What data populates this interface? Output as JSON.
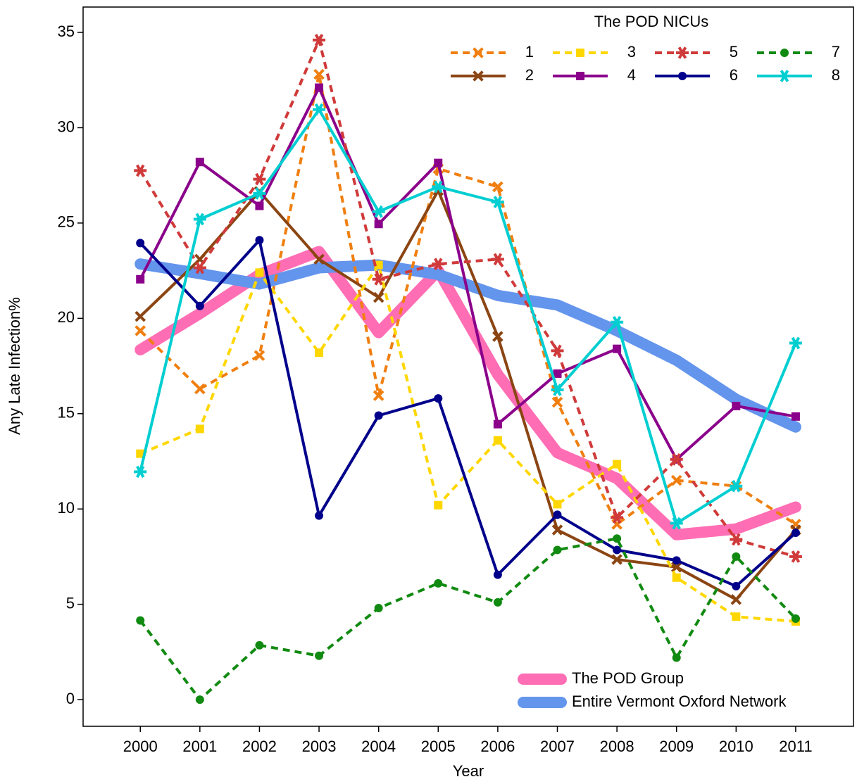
{
  "chart_data": {
    "type": "line",
    "x_label": "Year",
    "y_label": "Any Late Infection%",
    "x": [
      2000,
      2001,
      2002,
      2003,
      2004,
      2005,
      2006,
      2007,
      2008,
      2009,
      2010,
      2011
    ],
    "xlim": [
      1999.04,
      2011.97
    ],
    "xticks": [
      2000,
      2001,
      2002,
      2003,
      2004,
      2005,
      2006,
      2007,
      2008,
      2009,
      2010,
      2011
    ],
    "ylim": [
      -1.4,
      36.33
    ],
    "yticks": [
      0,
      5,
      10,
      15,
      20,
      25,
      30,
      35
    ],
    "legend_title": "The POD NICUs",
    "series": [
      {
        "name": "1",
        "color": "#f07f10",
        "dashed": true,
        "marker": "x",
        "values": [
          19.35,
          16.3,
          18.05,
          32.8,
          15.95,
          27.85,
          26.9,
          15.6,
          9.2,
          11.5,
          11.2,
          9.2
        ]
      },
      {
        "name": "2",
        "color": "#8b4513",
        "dashed": false,
        "marker": "x",
        "values": [
          20.1,
          23.1,
          26.65,
          23.1,
          21.1,
          26.7,
          19.05,
          8.9,
          7.35,
          6.95,
          5.25,
          8.9
        ]
      },
      {
        "name": "3",
        "color": "#ffd700",
        "dashed": true,
        "marker": "square",
        "values": [
          12.9,
          14.2,
          22.4,
          18.2,
          22.8,
          10.2,
          13.6,
          10.25,
          12.35,
          6.4,
          4.35,
          4.1
        ]
      },
      {
        "name": "4",
        "color": "#8b008b",
        "dashed": false,
        "marker": "square",
        "values": [
          22.05,
          28.2,
          25.9,
          32.1,
          24.95,
          28.15,
          14.45,
          17.1,
          18.4,
          12.6,
          15.4,
          14.85
        ]
      },
      {
        "name": "5",
        "color": "#d03a3a",
        "dashed": true,
        "marker": "star",
        "values": [
          27.75,
          22.65,
          27.3,
          34.6,
          22.05,
          22.85,
          23.1,
          18.3,
          9.55,
          12.6,
          8.4,
          7.5
        ]
      },
      {
        "name": "6",
        "color": "#00008b",
        "dashed": false,
        "marker": "circle",
        "values": [
          23.95,
          20.65,
          24.1,
          9.65,
          14.9,
          15.8,
          6.55,
          9.7,
          7.85,
          7.3,
          5.95,
          8.75
        ]
      },
      {
        "name": "7",
        "color": "#118a11",
        "dashed": true,
        "marker": "circle",
        "values": [
          4.15,
          0,
          2.85,
          2.3,
          4.8,
          6.1,
          5.1,
          7.85,
          8.45,
          2.2,
          7.5,
          4.25
        ]
      },
      {
        "name": "8",
        "color": "#00ced1",
        "dashed": false,
        "marker": "star",
        "values": [
          11.95,
          25.2,
          26.55,
          30.95,
          25.6,
          26.9,
          26.1,
          16.25,
          19.8,
          9.25,
          11.2,
          18.7
        ]
      }
    ],
    "reference_series": [
      {
        "name": "The POD Group",
        "color": "#ff6eb4",
        "values": [
          18.35,
          20.25,
          22.3,
          23.5,
          19.25,
          22.5,
          17.05,
          12.95,
          11.6,
          8.65,
          8.95,
          10.1
        ]
      },
      {
        "name": "Entire Vermont Oxford Network",
        "color": "#6495ed",
        "values": [
          22.85,
          22.35,
          21.8,
          22.65,
          22.8,
          22.3,
          21.2,
          20.7,
          19.35,
          17.8,
          15.75,
          14.3
        ]
      }
    ]
  }
}
